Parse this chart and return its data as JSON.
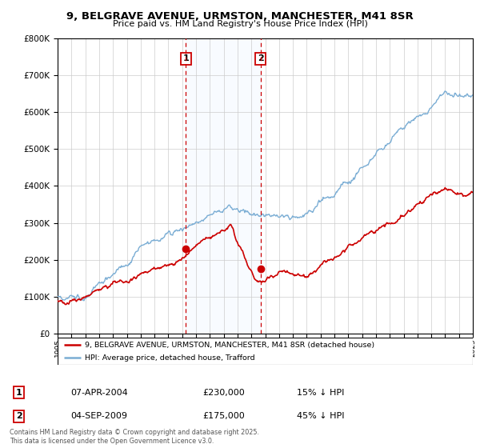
{
  "title_line1": "9, BELGRAVE AVENUE, URMSTON, MANCHESTER, M41 8SR",
  "title_line2": "Price paid vs. HM Land Registry's House Price Index (HPI)",
  "ytick_values": [
    0,
    100000,
    200000,
    300000,
    400000,
    500000,
    600000,
    700000,
    800000
  ],
  "ylim": [
    0,
    800000
  ],
  "sale1": {
    "date": "07-APR-2004",
    "price": 230000,
    "label": "1",
    "year": 2004.27,
    "pct": "15% ↓ HPI"
  },
  "sale2": {
    "date": "04-SEP-2009",
    "price": 175000,
    "label": "2",
    "year": 2009.67,
    "pct": "45% ↓ HPI"
  },
  "legend_red": "9, BELGRAVE AVENUE, URMSTON, MANCHESTER, M41 8SR (detached house)",
  "legend_blue": "HPI: Average price, detached house, Trafford",
  "footnote": "Contains HM Land Registry data © Crown copyright and database right 2025.\nThis data is licensed under the Open Government Licence v3.0.",
  "red_color": "#cc0000",
  "blue_color": "#7aadd4",
  "background_color": "#ffffff",
  "plot_bg_color": "#ffffff",
  "grid_color": "#cccccc",
  "shade_color": "#ddeeff",
  "xlim_start": 1995,
  "xlim_end": 2025
}
